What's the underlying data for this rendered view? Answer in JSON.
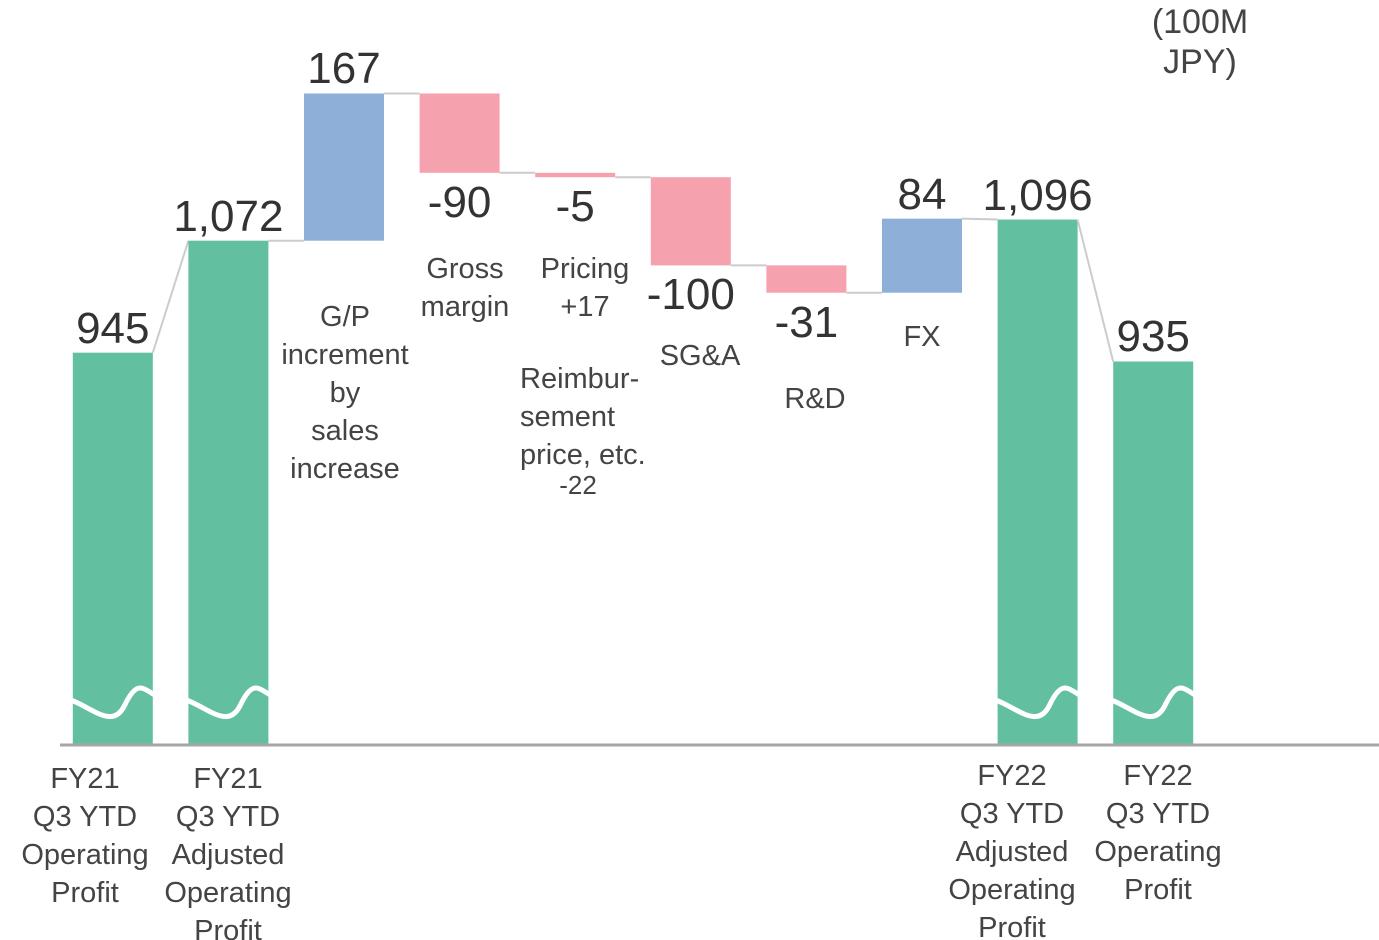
{
  "chart_data": {
    "type": "waterfall",
    "unit": "(100M JPY)",
    "categories": [
      "FY21\nQ3 YTD\nOperating\nProfit",
      "FY21\nQ3 YTD\nAdjusted\nOperating\nProfit",
      "G/P\nincrement\nby\nsales\nincrease",
      "Gross\nmargin",
      "Pricing\n+17",
      "SG&A",
      "R&D",
      "FX",
      "FY22\nQ3 YTD\nAdjusted\nOperating\nProfit",
      "FY22\nQ3 YTD\nOperating\nProfit"
    ],
    "values": [
      945,
      1072,
      167,
      -90,
      -5,
      -100,
      -31,
      84,
      1096,
      935
    ],
    "value_labels": [
      "945",
      "1,072",
      "167",
      "-90",
      "-5",
      "-100",
      "-31",
      "84",
      "1,096",
      "935"
    ],
    "measure": [
      "total",
      "total",
      "relative",
      "relative",
      "relative",
      "relative",
      "relative",
      "relative",
      "total",
      "total"
    ],
    "colors": {
      "total": "#62c0a0",
      "increase": "#8eb0d8",
      "decrease": "#f6a1ae"
    },
    "annotations": [
      "Reimbur-\nsement\nprice, etc.",
      "-22"
    ],
    "ylim": [
      500,
      1345
    ]
  }
}
